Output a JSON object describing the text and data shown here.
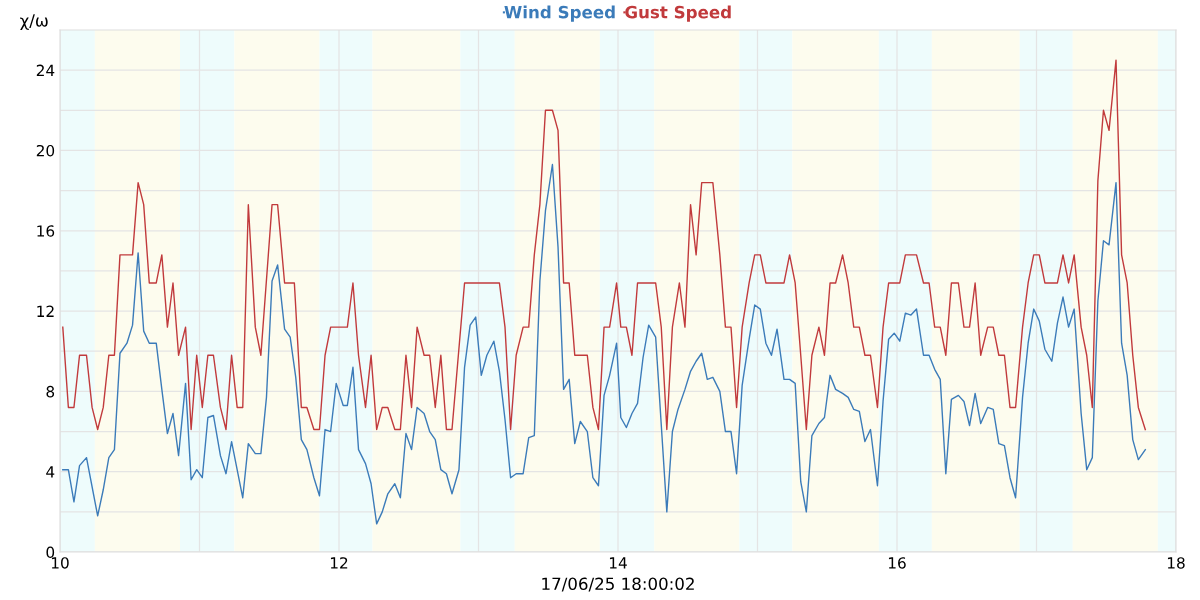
{
  "chart_data": {
    "type": "line",
    "xlabel": "17/06/25 18:00:02",
    "ylabel": "χ/ω",
    "xlim": [
      10,
      18
    ],
    "xticks": [
      10,
      {
        "value": 11,
        "label": null
      },
      12,
      {
        "value": 13,
        "label": null
      },
      14,
      {
        "value": 15,
        "label": null
      },
      16,
      {
        "value": 17,
        "label": null
      },
      18
    ],
    "ylim": [
      0,
      26
    ],
    "yticks": [
      0,
      {
        "value": 2,
        "label": null
      },
      4,
      {
        "value": 6,
        "label": null
      },
      8,
      {
        "value": 10,
        "label": null
      },
      12,
      {
        "value": 14,
        "label": null
      },
      16,
      {
        "value": 18,
        "label": null
      },
      20,
      {
        "value": 22,
        "label": null
      },
      24
    ],
    "grid": true,
    "legend": "top",
    "marker": "none",
    "line_style": "solid",
    "bands": [
      {
        "axis": "x",
        "from": 10,
        "to": 10.25,
        "color": "#eefcfc"
      },
      {
        "axis": "x",
        "from": 10.25,
        "to": 10.86,
        "color": "#fdfcee"
      },
      {
        "axis": "x",
        "from": 10.86,
        "to": 11.25,
        "color": "#eefcfc"
      },
      {
        "axis": "x",
        "from": 11.25,
        "to": 11.86,
        "color": "#fdfcee"
      },
      {
        "axis": "x",
        "from": 11.86,
        "to": 12.24,
        "color": "#eefcfc"
      },
      {
        "axis": "x",
        "from": 12.24,
        "to": 12.87,
        "color": "#fdfcee"
      },
      {
        "axis": "x",
        "from": 12.87,
        "to": 13.26,
        "color": "#eefcfc"
      },
      {
        "axis": "x",
        "from": 13.26,
        "to": 13.87,
        "color": "#fdfcee"
      },
      {
        "axis": "x",
        "from": 13.87,
        "to": 14.26,
        "color": "#eefcfc"
      },
      {
        "axis": "x",
        "from": 14.26,
        "to": 14.87,
        "color": "#fdfcee"
      },
      {
        "axis": "x",
        "from": 14.87,
        "to": 15.25,
        "color": "#eefcfc"
      },
      {
        "axis": "x",
        "from": 15.25,
        "to": 15.87,
        "color": "#fdfcee"
      },
      {
        "axis": "x",
        "from": 15.87,
        "to": 16.25,
        "color": "#eefcfc"
      },
      {
        "axis": "x",
        "from": 16.25,
        "to": 16.88,
        "color": "#fdfcee"
      },
      {
        "axis": "x",
        "from": 16.88,
        "to": 17.26,
        "color": "#eefcfc"
      },
      {
        "axis": "x",
        "from": 17.26,
        "to": 17.87,
        "color": "#fdfcee"
      },
      {
        "axis": "x",
        "from": 17.87,
        "to": 18,
        "color": "#eefcfc"
      }
    ],
    "series": [
      {
        "name": "Wind Speed",
        "color": "#3b7bb9",
        "x": [
          10.02,
          10.06,
          10.1,
          10.14,
          10.19,
          10.27,
          10.31,
          10.35,
          10.39,
          10.43,
          10.48,
          10.52,
          10.56,
          10.6,
          10.64,
          10.69,
          10.73,
          10.77,
          10.81,
          10.85,
          10.9,
          10.94,
          10.98,
          11.02,
          11.06,
          11.1,
          11.15,
          11.19,
          11.23,
          11.31,
          11.35,
          11.4,
          11.44,
          11.48,
          11.52,
          11.56,
          11.61,
          11.65,
          11.69,
          11.73,
          11.77,
          11.82,
          11.86,
          11.9,
          11.94,
          11.98,
          12.03,
          12.06,
          12.1,
          12.14,
          12.19,
          12.23,
          12.27,
          12.31,
          12.35,
          12.4,
          12.44,
          12.48,
          12.52,
          12.56,
          12.61,
          12.65,
          12.69,
          12.73,
          12.77,
          12.81,
          12.86,
          12.9,
          12.94,
          12.98,
          13.02,
          13.06,
          13.11,
          13.15,
          13.19,
          13.23,
          13.27,
          13.32,
          13.36,
          13.4,
          13.44,
          13.48,
          13.53,
          13.57,
          13.61,
          13.65,
          13.69,
          13.73,
          13.78,
          13.82,
          13.86,
          13.9,
          13.94,
          13.99,
          14.02,
          14.06,
          14.1,
          14.14,
          14.18,
          14.22,
          14.27,
          14.35,
          14.39,
          14.43,
          14.48,
          14.52,
          14.56,
          14.6,
          14.64,
          14.68,
          14.73,
          14.77,
          14.81,
          14.85,
          14.89,
          14.94,
          14.98,
          15.02,
          15.06,
          15.1,
          15.14,
          15.19,
          15.23,
          15.27,
          15.31,
          15.35,
          15.39,
          15.44,
          15.48,
          15.52,
          15.56,
          15.61,
          15.65,
          15.69,
          15.73,
          15.77,
          15.81,
          15.86,
          15.9,
          15.94,
          15.98,
          16.02,
          16.06,
          16.1,
          16.14,
          16.19,
          16.23,
          16.27,
          16.31,
          16.35,
          16.39,
          16.44,
          16.48,
          16.52,
          16.56,
          16.6,
          16.65,
          16.69,
          16.73,
          16.77,
          16.81,
          16.85,
          16.9,
          16.94,
          16.98,
          17.02,
          17.06,
          17.11,
          17.15,
          17.19,
          17.23,
          17.27,
          17.32,
          17.36,
          17.4,
          17.44,
          17.48,
          17.52,
          17.57,
          17.61,
          17.65,
          17.69,
          17.73,
          17.78
        ],
        "values": [
          4.1,
          4.1,
          2.5,
          4.3,
          4.7,
          1.8,
          3.1,
          4.7,
          5.1,
          9.9,
          10.4,
          11.3,
          14.9,
          11.0,
          10.4,
          10.4,
          8.1,
          5.9,
          6.9,
          4.8,
          8.4,
          3.6,
          4.1,
          3.7,
          6.7,
          6.8,
          4.8,
          3.9,
          5.5,
          2.7,
          5.4,
          4.9,
          4.9,
          7.7,
          13.5,
          14.3,
          11.1,
          10.7,
          8.7,
          5.6,
          5.1,
          3.7,
          2.8,
          6.1,
          6.0,
          8.4,
          7.3,
          7.3,
          9.2,
          5.1,
          4.4,
          3.4,
          1.4,
          2.0,
          2.9,
          3.4,
          2.7,
          5.9,
          5.1,
          7.2,
          6.9,
          6.0,
          5.6,
          4.1,
          3.9,
          2.9,
          4.1,
          9.2,
          11.3,
          11.7,
          8.8,
          9.8,
          10.5,
          9.0,
          6.6,
          3.7,
          3.9,
          3.9,
          5.7,
          5.8,
          13.5,
          17.0,
          19.3,
          15.2,
          8.1,
          8.6,
          5.4,
          6.5,
          6.0,
          3.7,
          3.3,
          7.8,
          8.8,
          10.4,
          6.7,
          6.2,
          6.9,
          7.4,
          9.7,
          11.3,
          10.7,
          2.0,
          6.0,
          7.1,
          8.1,
          9.0,
          9.5,
          9.9,
          8.6,
          8.7,
          8.0,
          6.0,
          6.0,
          3.9,
          8.3,
          10.6,
          12.3,
          12.1,
          10.4,
          9.8,
          11.1,
          8.6,
          8.6,
          8.4,
          3.5,
          2.0,
          5.8,
          6.4,
          6.7,
          8.8,
          8.1,
          7.9,
          7.7,
          7.1,
          7.0,
          5.5,
          6.1,
          3.3,
          7.5,
          10.6,
          10.9,
          10.5,
          11.9,
          11.8,
          12.1,
          9.8,
          9.8,
          9.1,
          8.6,
          3.9,
          7.6,
          7.8,
          7.5,
          6.3,
          7.9,
          6.4,
          7.2,
          7.1,
          5.4,
          5.3,
          3.7,
          2.7,
          7.7,
          10.4,
          12.1,
          11.5,
          10.1,
          9.5,
          11.4,
          12.7,
          11.2,
          12.1,
          6.9,
          4.1,
          4.7,
          12.5,
          15.5,
          15.3,
          18.4,
          10.4,
          8.8,
          5.6,
          4.6,
          5.1
        ]
      },
      {
        "name": "Gust Speed",
        "color": "#c13a3c",
        "x": [
          10.02,
          10.06,
          10.1,
          10.14,
          10.19,
          10.23,
          10.27,
          10.31,
          10.35,
          10.39,
          10.43,
          10.52,
          10.56,
          10.6,
          10.64,
          10.69,
          10.73,
          10.77,
          10.81,
          10.85,
          10.9,
          10.94,
          10.98,
          11.02,
          11.06,
          11.1,
          11.15,
          11.19,
          11.23,
          11.27,
          11.31,
          11.35,
          11.4,
          11.44,
          11.52,
          11.56,
          11.61,
          11.68,
          11.73,
          11.77,
          11.82,
          11.86,
          11.9,
          11.94,
          12.06,
          12.1,
          12.14,
          12.19,
          12.23,
          12.27,
          12.31,
          12.35,
          12.4,
          12.44,
          12.48,
          12.52,
          12.56,
          12.61,
          12.65,
          12.69,
          12.73,
          12.77,
          12.81,
          12.9,
          13.15,
          13.19,
          13.23,
          13.27,
          13.32,
          13.36,
          13.4,
          13.44,
          13.48,
          13.53,
          13.57,
          13.61,
          13.65,
          13.69,
          13.78,
          13.82,
          13.86,
          13.9,
          13.94,
          13.99,
          14.02,
          14.06,
          14.1,
          14.14,
          14.27,
          14.31,
          14.35,
          14.39,
          14.44,
          14.48,
          14.52,
          14.56,
          14.6,
          14.68,
          14.73,
          14.77,
          14.81,
          14.85,
          14.89,
          14.94,
          14.98,
          15.02,
          15.06,
          15.19,
          15.23,
          15.27,
          15.31,
          15.35,
          15.39,
          15.44,
          15.48,
          15.52,
          15.56,
          15.61,
          15.65,
          15.69,
          15.73,
          15.77,
          15.81,
          15.86,
          15.9,
          15.94,
          16.02,
          16.06,
          16.14,
          16.19,
          16.23,
          16.27,
          16.31,
          16.35,
          16.39,
          16.44,
          16.48,
          16.52,
          16.56,
          16.6,
          16.65,
          16.69,
          16.73,
          16.77,
          16.81,
          16.85,
          16.9,
          16.94,
          16.98,
          17.02,
          17.06,
          17.15,
          17.19,
          17.23,
          17.27,
          17.32,
          17.36,
          17.4,
          17.44,
          17.48,
          17.52,
          17.57,
          17.61,
          17.65,
          17.69,
          17.73,
          17.78
        ],
        "values": [
          11.2,
          7.2,
          7.2,
          9.8,
          9.8,
          7.2,
          6.1,
          7.2,
          9.8,
          9.8,
          14.8,
          14.8,
          18.4,
          17.3,
          13.4,
          13.4,
          14.8,
          11.2,
          13.4,
          9.8,
          11.2,
          6.1,
          9.8,
          7.2,
          9.8,
          9.8,
          7.2,
          6.1,
          9.8,
          7.2,
          7.2,
          17.3,
          11.2,
          9.8,
          17.3,
          17.3,
          13.4,
          13.4,
          7.2,
          7.2,
          6.1,
          6.1,
          9.8,
          11.2,
          11.2,
          13.4,
          9.8,
          7.2,
          9.8,
          6.1,
          7.2,
          7.2,
          6.1,
          6.1,
          9.8,
          7.2,
          11.2,
          9.8,
          9.8,
          7.2,
          9.8,
          6.1,
          6.1,
          13.4,
          13.4,
          11.2,
          6.1,
          9.8,
          11.2,
          11.2,
          14.8,
          17.3,
          22.0,
          22.0,
          21.0,
          13.4,
          13.4,
          9.8,
          9.8,
          7.2,
          6.1,
          11.2,
          11.2,
          13.4,
          11.2,
          11.2,
          9.8,
          13.4,
          13.4,
          11.2,
          6.1,
          11.2,
          13.4,
          11.2,
          17.3,
          14.8,
          18.4,
          18.4,
          14.8,
          11.2,
          11.2,
          7.2,
          11.2,
          13.4,
          14.8,
          14.8,
          13.4,
          13.4,
          14.8,
          13.4,
          9.8,
          6.1,
          9.8,
          11.2,
          9.8,
          13.4,
          13.4,
          14.8,
          13.4,
          11.2,
          11.2,
          9.8,
          9.8,
          7.2,
          11.2,
          13.4,
          13.4,
          14.8,
          14.8,
          13.4,
          13.4,
          11.2,
          11.2,
          9.8,
          13.4,
          13.4,
          11.2,
          11.2,
          13.4,
          9.8,
          11.2,
          11.2,
          9.8,
          9.8,
          7.2,
          7.2,
          11.2,
          13.4,
          14.8,
          14.8,
          13.4,
          13.4,
          14.8,
          13.4,
          14.8,
          11.2,
          9.8,
          7.2,
          18.5,
          22.0,
          21.0,
          24.5,
          14.8,
          13.4,
          9.8,
          7.2,
          6.1
        ]
      }
    ]
  }
}
